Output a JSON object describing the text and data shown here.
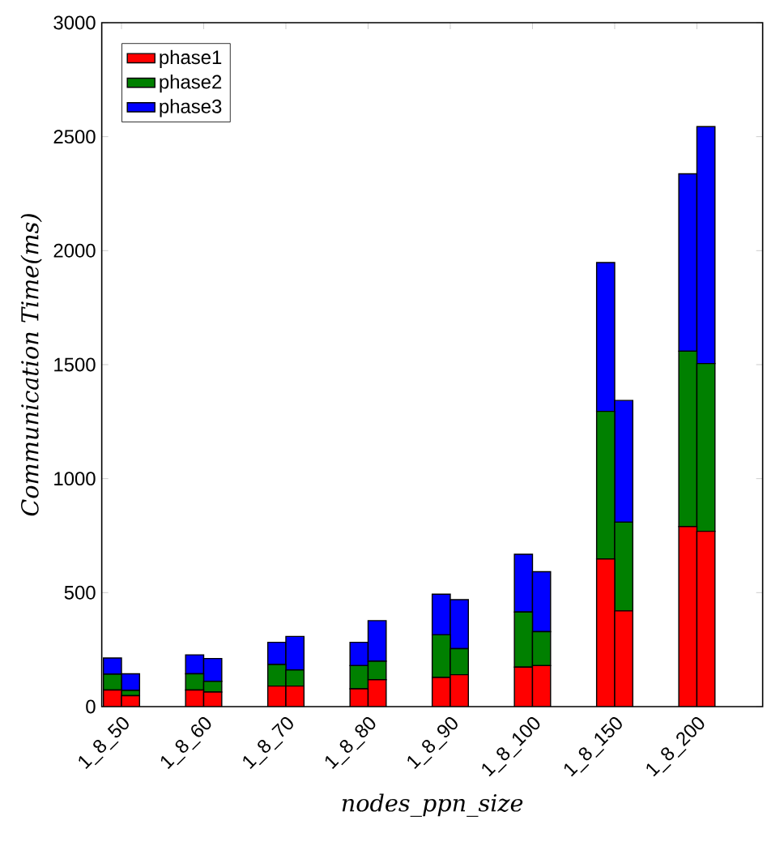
{
  "chart_data": {
    "type": "bar",
    "stacked": true,
    "xlabel": "nodes_ppn_size",
    "ylabel": "Communication Time(ms)",
    "categories": [
      "1_8_50",
      null,
      "1_8_60",
      null,
      "1_8_70",
      null,
      "1_8_80",
      null,
      "1_8_90",
      null,
      "1_8_100",
      null,
      "1_8_150",
      null,
      "1_8_200",
      null
    ],
    "series": [
      {
        "name": "phase1",
        "color": "#ff0000",
        "values": [
          73,
          48,
          73,
          64,
          90,
          90,
          78,
          118,
          128,
          140,
          173,
          180,
          648,
          420,
          790,
          769
        ]
      },
      {
        "name": "phase2",
        "color": "#008000",
        "values": [
          69,
          23,
          71,
          47,
          95,
          71,
          102,
          81,
          187,
          114,
          242,
          149,
          647,
          389,
          769,
          736
        ]
      },
      {
        "name": "phase3",
        "color": "#0000ff",
        "values": [
          71,
          73,
          83,
          100,
          97,
          147,
          102,
          178,
          178,
          215,
          253,
          263,
          653,
          534,
          778,
          1039
        ]
      }
    ],
    "ylim": [
      0,
      3000
    ],
    "yticks": [
      0,
      500,
      1000,
      1500,
      2000,
      2500,
      3000
    ],
    "legend": "top left"
  }
}
